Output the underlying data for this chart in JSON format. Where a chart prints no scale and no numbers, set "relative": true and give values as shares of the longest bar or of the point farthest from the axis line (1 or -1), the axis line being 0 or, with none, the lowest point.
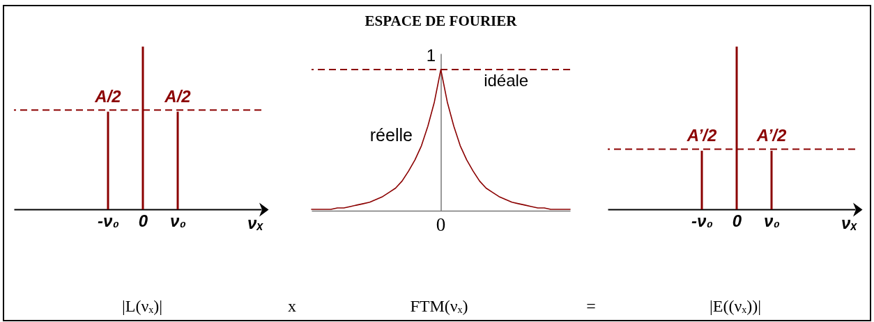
{
  "chart_data": [
    {
      "type": "bar",
      "categories": [
        "-ν₀",
        "0",
        "ν₀"
      ],
      "values": [
        0.6,
        1,
        0.6
      ],
      "relative": true,
      "color": "#8b0000",
      "xlabel": "νₓ",
      "ref_lines": [
        {
          "axis": "y",
          "value": 0.61,
          "line_style": "dashed",
          "color": "#8b0000"
        }
      ],
      "annotations": [
        {
          "text": "A/2",
          "x": "-ν₀",
          "y": 0.6
        },
        {
          "text": "A/2",
          "x": "ν₀",
          "y": 0.6
        }
      ]
    },
    {
      "type": "line",
      "title": "ESPACE DE FOURIER",
      "categories": [
        null,
        null,
        null,
        null,
        null,
        null,
        null,
        null,
        null,
        null,
        null,
        null,
        null,
        null,
        null,
        null,
        null,
        null,
        null,
        null,
        null,
        null,
        null,
        null,
        null,
        null,
        null,
        null,
        null,
        null,
        null,
        null,
        null,
        null,
        null,
        null,
        null,
        null,
        null,
        null,
        null
      ],
      "series": [
        {
          "name": "réelle",
          "color": "#8b0000",
          "values": [
            0.01,
            0.01,
            0.01,
            0.01,
            0.02,
            0.02,
            0.03,
            0.04,
            0.05,
            0.06,
            0.08,
            0.1,
            0.13,
            0.16,
            0.21,
            0.28,
            0.36,
            0.46,
            0.6,
            0.77,
            1,
            0.77,
            0.6,
            0.46,
            0.36,
            0.28,
            0.21,
            0.16,
            0.13,
            0.1,
            0.08,
            0.06,
            0.05,
            0.04,
            0.03,
            0.02,
            0.02,
            0.01,
            0.01,
            0.01,
            0.01
          ]
        }
      ],
      "relative": true,
      "ref_lines": [
        {
          "axis": "y",
          "value": 1,
          "label": "idéale",
          "line_style": "dashed",
          "color": "#8b0000"
        }
      ],
      "annotations": [
        {
          "text": "1",
          "y": 1
        },
        "0"
      ]
    },
    {
      "type": "bar",
      "categories": [
        "-ν₀",
        "0",
        "ν₀"
      ],
      "values": [
        0.36,
        1,
        0.36
      ],
      "relative": true,
      "color": "#8b0000",
      "xlabel": "νₓ",
      "ref_lines": [
        {
          "axis": "y",
          "value": 0.37,
          "line_style": "dashed",
          "color": "#8b0000"
        }
      ],
      "annotations": [
        {
          "text": "A’/2",
          "x": "-ν₀",
          "y": 0.36
        },
        {
          "text": "A’/2",
          "x": "ν₀",
          "y": 0.36
        }
      ]
    },
    {
      "type": "other",
      "annotations": [
        "|L(νₓ)|",
        "x",
        "FTM(νₓ)",
        "=",
        "|E((νₓ))|"
      ]
    }
  ]
}
